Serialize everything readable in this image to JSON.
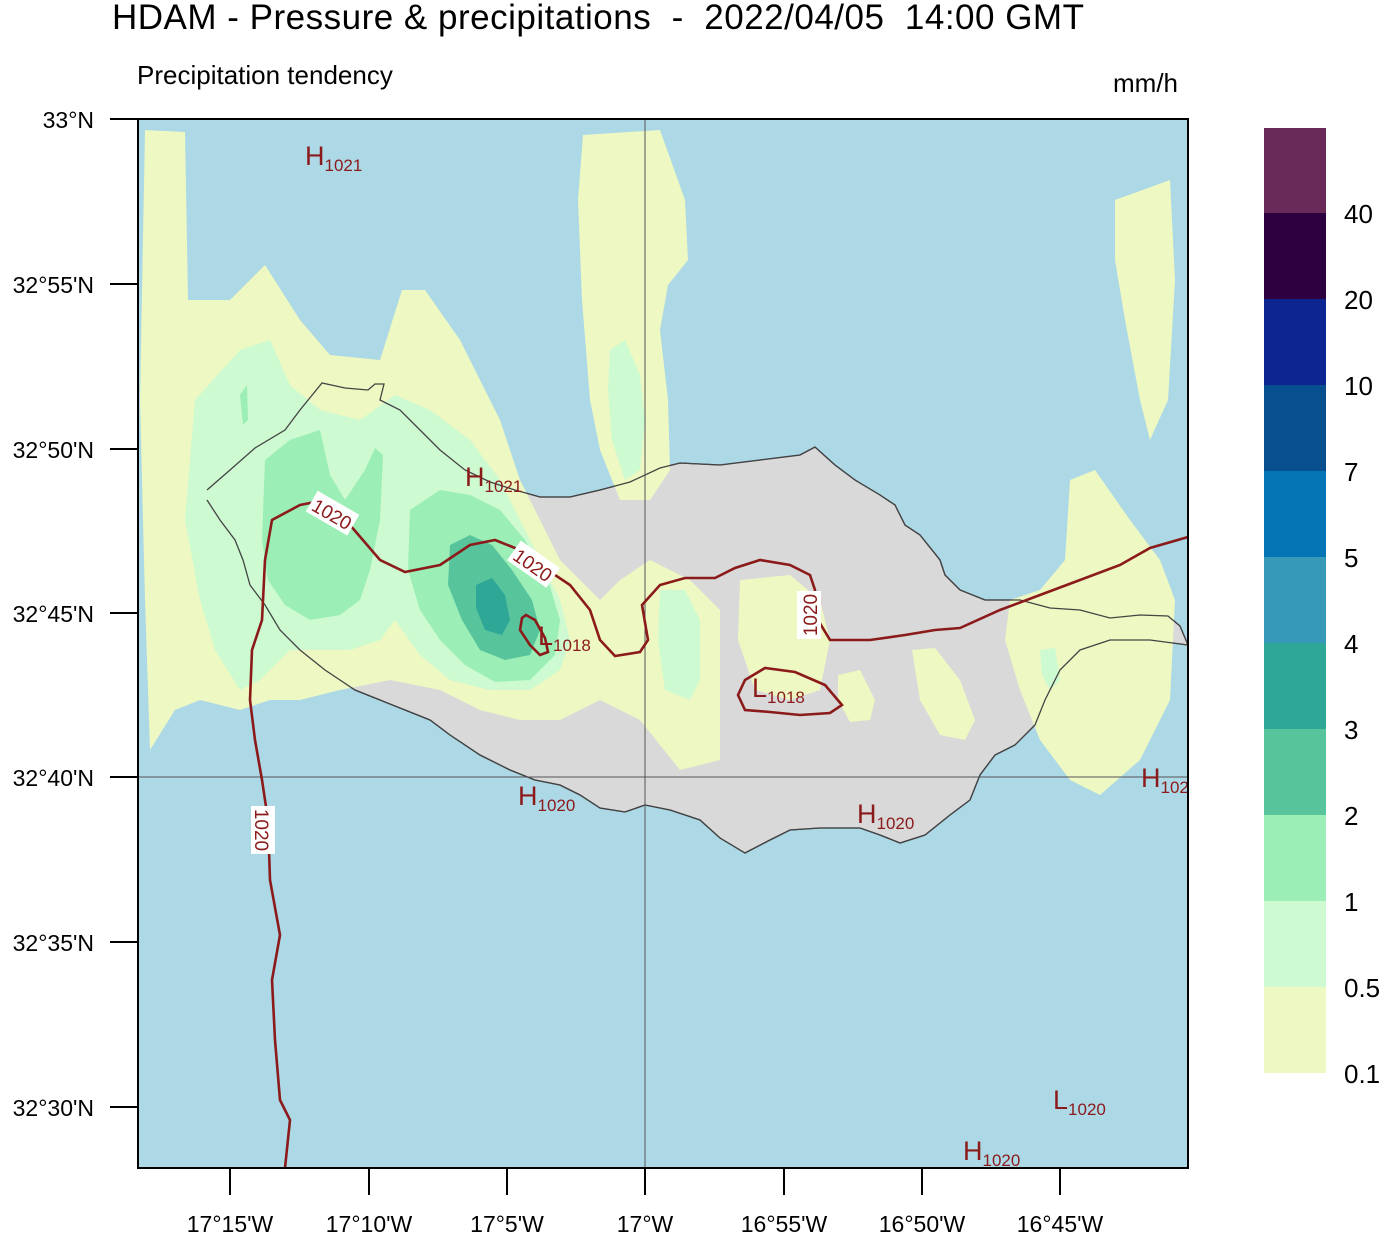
{
  "title": "HDAM - Pressure & precipitations  -  2022/04/05  14:00 GMT",
  "subtitle": "Precipitation tendency",
  "units": "mm/h",
  "colors": {
    "sea": "#add8e6",
    "land": "#d9d9d9",
    "isobar": "#8b1a1a",
    "coast": "#444444",
    "grid": "#555555"
  },
  "lat_labels": [
    "33°N",
    "32°55'N",
    "32°50'N",
    "32°45'N",
    "32°40'N",
    "32°35'N",
    "32°30'N"
  ],
  "lon_labels": [
    "17°15'W",
    "17°10'W",
    "17°5'W",
    "17°W",
    "16°55'W",
    "16°50'W",
    "16°45'W"
  ],
  "colorbar": {
    "colors": [
      "#edf8c2",
      "#cdfad0",
      "#9beeb5",
      "#57c49c",
      "#2fa797",
      "#3699b8",
      "#0574b4",
      "#074f8e",
      "#0d2590",
      "#2d0040",
      "#6a2a59"
    ],
    "labels": [
      "0.1",
      "0.5",
      "1",
      "2",
      "3",
      "4",
      "5",
      "7",
      "10",
      "20",
      "40"
    ]
  },
  "pressure_centers": [
    {
      "letter": "H",
      "value": "1021"
    },
    {
      "letter": "H",
      "value": "1021"
    },
    {
      "letter": "L",
      "value": "1018"
    },
    {
      "letter": "L",
      "value": "1018"
    },
    {
      "letter": "H",
      "value": "1020"
    },
    {
      "letter": "H",
      "value": "1020"
    },
    {
      "letter": "H",
      "value": "102"
    },
    {
      "letter": "L",
      "value": "1020"
    },
    {
      "letter": "H",
      "value": "1020"
    }
  ],
  "isobar_labels": [
    "1020",
    "1020",
    "1020",
    "1020"
  ]
}
